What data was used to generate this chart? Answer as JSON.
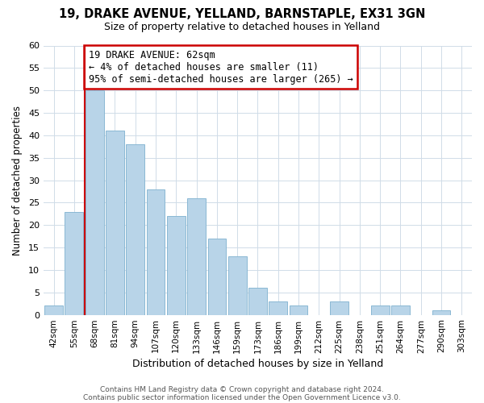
{
  "title1": "19, DRAKE AVENUE, YELLAND, BARNSTAPLE, EX31 3GN",
  "title2": "Size of property relative to detached houses in Yelland",
  "xlabel": "Distribution of detached houses by size in Yelland",
  "ylabel": "Number of detached properties",
  "bar_labels": [
    "42sqm",
    "55sqm",
    "68sqm",
    "81sqm",
    "94sqm",
    "107sqm",
    "120sqm",
    "133sqm",
    "146sqm",
    "159sqm",
    "173sqm",
    "186sqm",
    "199sqm",
    "212sqm",
    "225sqm",
    "238sqm",
    "251sqm",
    "264sqm",
    "277sqm",
    "290sqm",
    "303sqm"
  ],
  "bar_values": [
    2,
    23,
    50,
    41,
    38,
    28,
    22,
    26,
    17,
    13,
    6,
    3,
    2,
    0,
    3,
    0,
    2,
    2,
    0,
    1,
    0
  ],
  "bar_color": "#b8d4e8",
  "bar_edge_color": "#8ab8d4",
  "marker_color": "#cc0000",
  "annotation_title": "19 DRAKE AVENUE: 62sqm",
  "annotation_line1": "← 4% of detached houses are smaller (11)",
  "annotation_line2": "95% of semi-detached houses are larger (265) →",
  "annotation_box_color": "#ffffff",
  "annotation_box_edge": "#cc0000",
  "ylim": [
    0,
    60
  ],
  "yticks": [
    0,
    5,
    10,
    15,
    20,
    25,
    30,
    35,
    40,
    45,
    50,
    55,
    60
  ],
  "footer1": "Contains HM Land Registry data © Crown copyright and database right 2024.",
  "footer2": "Contains public sector information licensed under the Open Government Licence v3.0.",
  "bg_color": "#ffffff",
  "plot_bg_color": "#ffffff",
  "grid_color": "#d0dce8",
  "title1_fontsize": 10.5,
  "title2_fontsize": 9,
  "xlabel_fontsize": 9,
  "ylabel_fontsize": 8.5,
  "tick_fontsize": 7.5,
  "ytick_fontsize": 8,
  "footer_fontsize": 6.5,
  "annotation_fontsize": 8.5
}
